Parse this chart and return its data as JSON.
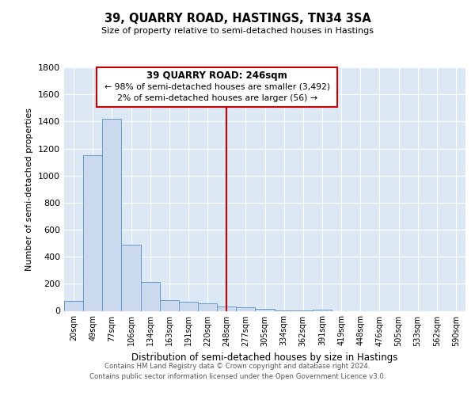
{
  "title": "39, QUARRY ROAD, HASTINGS, TN34 3SA",
  "subtitle": "Size of property relative to semi-detached houses in Hastings",
  "xlabel": "Distribution of semi-detached houses by size in Hastings",
  "ylabel": "Number of semi-detached properties",
  "bar_labels": [
    "20sqm",
    "49sqm",
    "77sqm",
    "106sqm",
    "134sqm",
    "163sqm",
    "191sqm",
    "220sqm",
    "248sqm",
    "277sqm",
    "305sqm",
    "334sqm",
    "362sqm",
    "391sqm",
    "419sqm",
    "448sqm",
    "476sqm",
    "505sqm",
    "533sqm",
    "562sqm",
    "590sqm"
  ],
  "bar_values": [
    75,
    1150,
    1420,
    490,
    215,
    80,
    65,
    55,
    35,
    25,
    15,
    5,
    5,
    10,
    0,
    0,
    0,
    0,
    0,
    0,
    0
  ],
  "bar_color": "#ccdaf0",
  "bar_edge_color": "#6699cc",
  "vline_x_index": 8,
  "vline_color": "#cc0000",
  "ylim": [
    0,
    1800
  ],
  "yticks": [
    0,
    200,
    400,
    600,
    800,
    1000,
    1200,
    1400,
    1600,
    1800
  ],
  "annotation_title": "39 QUARRY ROAD: 246sqm",
  "annotation_line1": "← 98% of semi-detached houses are smaller (3,492)",
  "annotation_line2": "2% of semi-detached houses are larger (56) →",
  "annotation_box_color": "#ffffff",
  "annotation_box_edge": "#cc0000",
  "footer1": "Contains HM Land Registry data © Crown copyright and database right 2024.",
  "footer2": "Contains public sector information licensed under the Open Government Licence v3.0.",
  "background_color": "#dde8f5",
  "grid_color": "#ffffff",
  "fig_bg_color": "#ffffff"
}
